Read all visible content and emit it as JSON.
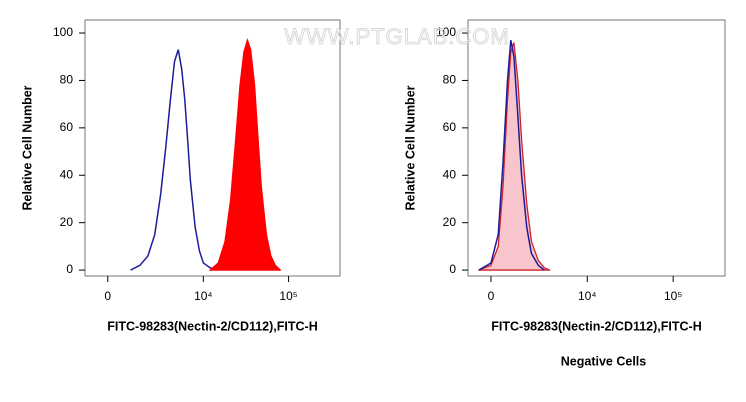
{
  "watermark": "WWW.PTGLAB.COM",
  "chart_data": [
    {
      "type": "density",
      "xscale": "asinh",
      "asinh_width": 1531,
      "xlabel": "FITC-98283(Nectin-2/CD112),FITC-H",
      "ylabel": "Relative Cell Number",
      "xlim": [
        -1000,
        400000
      ],
      "ylim": [
        -2.5,
        105.5
      ],
      "xticks": [
        0,
        {
          "value": 10000,
          "label": "10⁴"
        },
        {
          "value": 100000,
          "label": "10⁵"
        }
      ],
      "yticks": [
        0,
        20,
        40,
        60,
        80,
        100
      ],
      "series": [
        {
          "color": "#1c1c9c",
          "fill": "none",
          "x": [
            1000,
            1500,
            2000,
            2500,
            3000,
            3500,
            4000,
            4500,
            5000,
            5500,
            6000,
            6500,
            7000,
            8000,
            9000,
            10000,
            12000,
            14000
          ],
          "values": [
            0,
            2,
            6,
            15,
            32,
            52,
            72,
            88,
            93,
            85,
            72,
            55,
            38,
            18,
            8,
            3,
            1,
            0
          ]
        },
        {
          "color": "#ff0000",
          "fill": "#ff0000",
          "x": [
            12000,
            15000,
            18000,
            21000,
            24000,
            27000,
            30000,
            33000,
            36000,
            40000,
            44000,
            48000,
            55000,
            62000,
            70000,
            80000
          ],
          "values": [
            0,
            3,
            12,
            30,
            55,
            78,
            92,
            97,
            93,
            78,
            55,
            35,
            15,
            6,
            2,
            0
          ]
        }
      ]
    },
    {
      "type": "density",
      "xscale": "asinh",
      "asinh_width": 1531,
      "xlabel": "FITC-98283(Nectin-2/CD112),FITC-H",
      "ylabel": "Relative Cell Number",
      "subtitle": "Negative Cells",
      "xlim": [
        -1000,
        400000
      ],
      "ylim": [
        -2.5,
        105.5
      ],
      "xticks": [
        0,
        {
          "value": 10000,
          "label": "10⁴"
        },
        {
          "value": 100000,
          "label": "10⁵"
        }
      ],
      "yticks": [
        0,
        20,
        40,
        60,
        80,
        100
      ],
      "series": [
        {
          "color": "#d0202a",
          "fill": "#f8c5cc",
          "x": [
            -500,
            0,
            300,
            500,
            700,
            850,
            1000,
            1200,
            1400,
            1700,
            2000,
            2500,
            3000,
            3500
          ],
          "values": [
            0,
            2,
            10,
            35,
            72,
            92,
            96,
            80,
            55,
            28,
            12,
            4,
            1,
            0
          ]
        },
        {
          "color": "#1c1c9c",
          "fill": "none",
          "x": [
            -500,
            0,
            300,
            500,
            700,
            850,
            1000,
            1200,
            1400,
            1700,
            2000,
            2500,
            3000
          ],
          "values": [
            0,
            3,
            15,
            45,
            80,
            97,
            90,
            65,
            40,
            18,
            7,
            2,
            0
          ]
        }
      ]
    }
  ]
}
